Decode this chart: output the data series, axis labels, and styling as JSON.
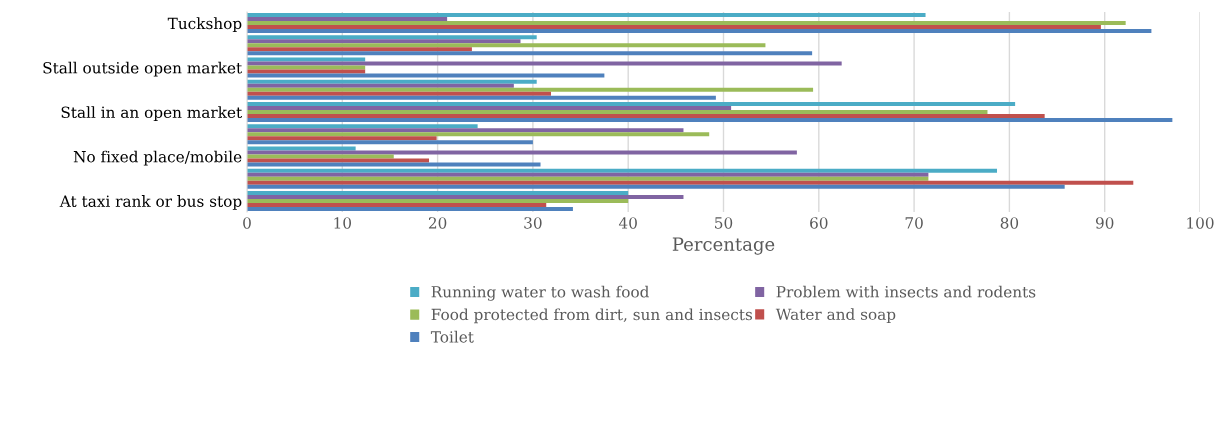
{
  "chart_data": {
    "type": "bar",
    "orientation": "horizontal",
    "xlabel": "Percentage",
    "categories": [
      "Tuckshop",
      null,
      "Stall outside open market",
      null,
      "Stall in an open market",
      null,
      "No fixed place/mobile",
      null,
      "At taxi rank or bus stop"
    ],
    "series": [
      {
        "name": "Running water to wash food",
        "color": "#4bacc6",
        "values": [
          71.2,
          30.4,
          12.4,
          30.4,
          80.6,
          24.2,
          11.4,
          78.7,
          40.0
        ]
      },
      {
        "name": "Problem with insects and rodents",
        "color": "#8064a2",
        "values": [
          21.0,
          28.7,
          62.4,
          28.0,
          50.8,
          45.8,
          57.7,
          71.5,
          45.8
        ]
      },
      {
        "name": "Food protected from dirt, sun and insects",
        "color": "#9bbb59",
        "values": [
          92.2,
          54.4,
          12.4,
          59.4,
          77.7,
          48.5,
          15.4,
          71.5,
          40.0
        ]
      },
      {
        "name": "Water and soap",
        "color": "#c0504d",
        "values": [
          89.6,
          23.6,
          12.4,
          31.9,
          83.7,
          19.9,
          19.1,
          93.0,
          31.4
        ]
      },
      {
        "name": "Toilet",
        "color": "#4f81bd",
        "values": [
          94.9,
          59.3,
          37.5,
          49.2,
          97.1,
          30.0,
          30.8,
          85.8,
          34.2
        ]
      }
    ],
    "xlim": [
      0,
      100
    ],
    "xticks": [
      0,
      10,
      20,
      30,
      40,
      50,
      60,
      70,
      80,
      90,
      100
    ],
    "grid": "x",
    "legend": "bottom"
  }
}
